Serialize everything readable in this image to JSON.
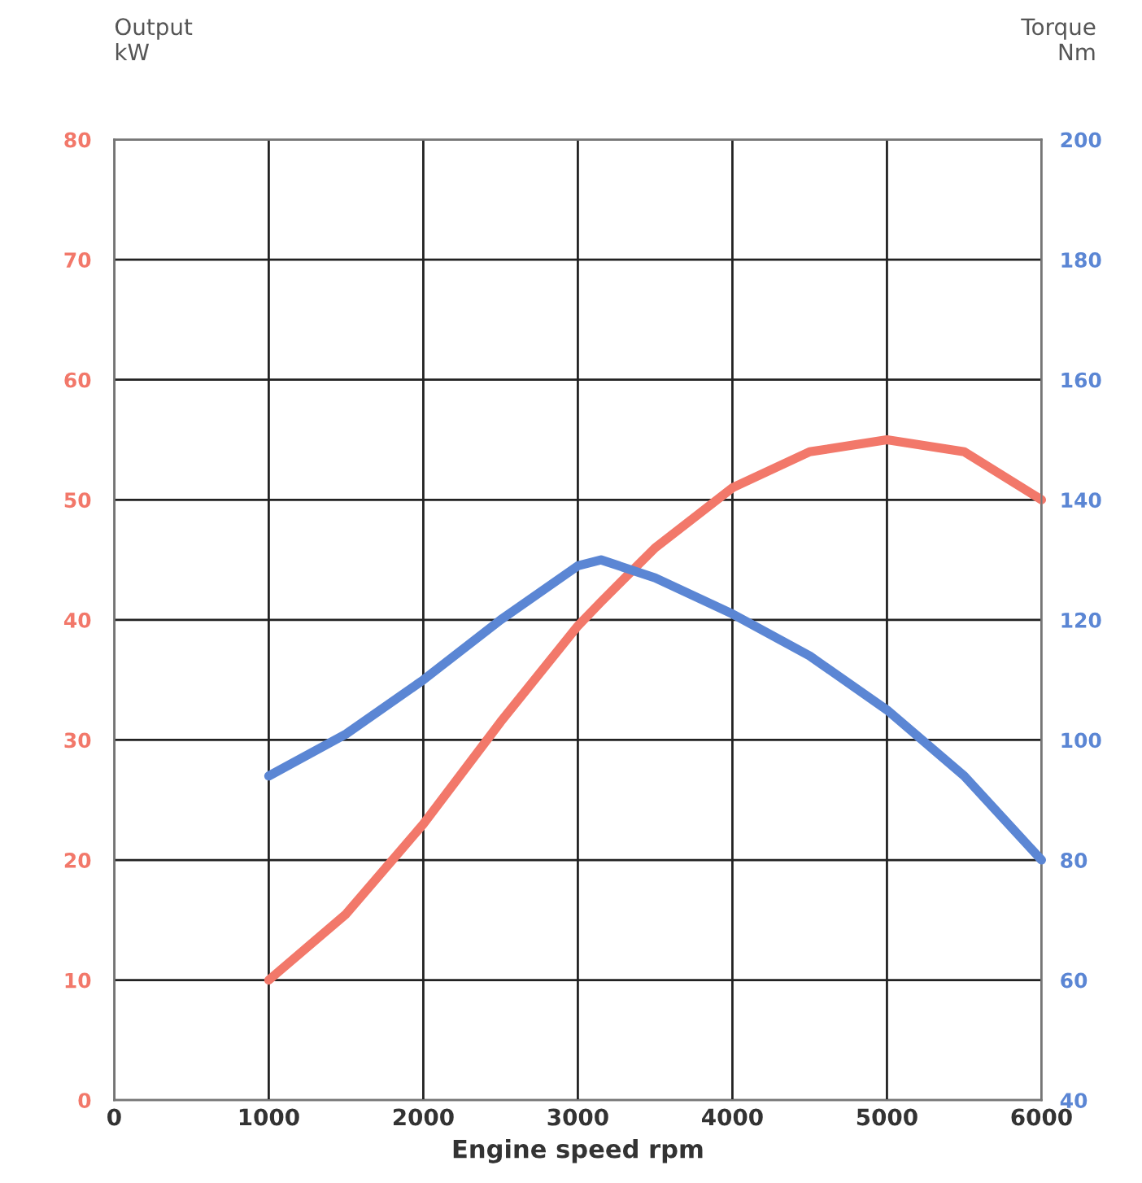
{
  "chart_data": {
    "type": "line",
    "xlabel": "Engine speed rpm",
    "ylabel": "Output\nkW",
    "y2label": "Torque\nNm",
    "x": [
      1000,
      1500,
      2000,
      2500,
      3000,
      3150,
      3500,
      4000,
      4500,
      5000,
      5500,
      6000
    ],
    "series": [
      {
        "color": "#f2786a",
        "values": [
          10,
          15.5,
          23,
          31.5,
          39.5,
          41.5,
          46,
          51,
          54,
          55,
          54,
          50
        ]
      },
      {
        "color": "#5b86d4",
        "axis": "y2",
        "values": [
          94,
          101,
          110,
          120,
          129,
          130,
          127,
          121,
          114,
          105,
          94,
          80
        ]
      }
    ],
    "xlim": [
      0,
      6000
    ],
    "xticks": [
      0,
      1000,
      2000,
      3000,
      4000,
      5000,
      6000
    ],
    "ylim": [
      0,
      80
    ],
    "yticks": [
      0,
      10,
      20,
      30,
      40,
      50,
      60,
      70,
      80
    ],
    "y2lim": [
      40,
      200
    ],
    "y2ticks": [
      40,
      60,
      80,
      100,
      120,
      140,
      160,
      180,
      200
    ],
    "grid": true,
    "legend": false,
    "marker": "none",
    "line_style": "solid"
  }
}
